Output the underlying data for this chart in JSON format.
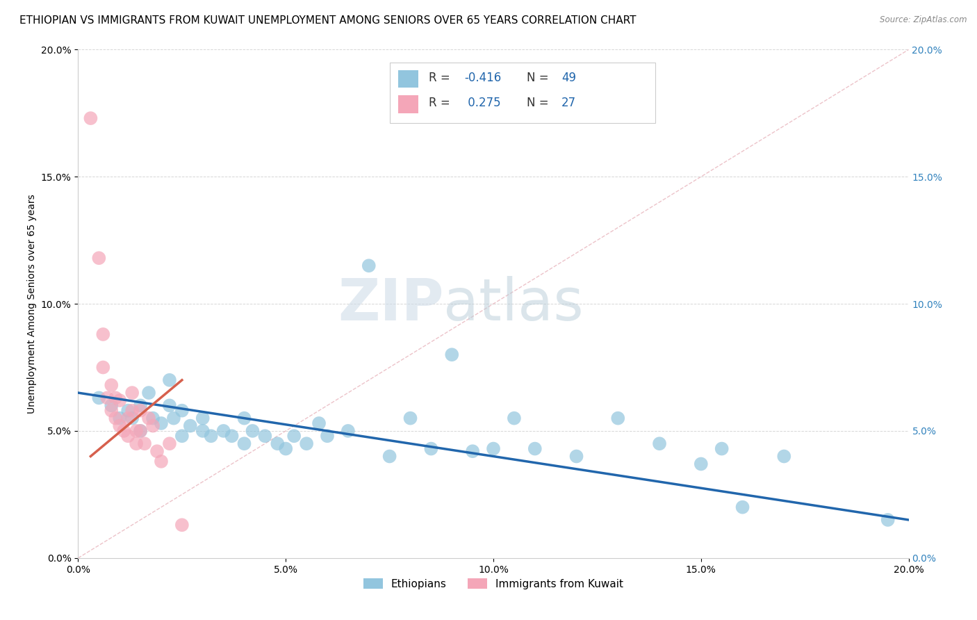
{
  "title": "ETHIOPIAN VS IMMIGRANTS FROM KUWAIT UNEMPLOYMENT AMONG SENIORS OVER 65 YEARS CORRELATION CHART",
  "source_text": "Source: ZipAtlas.com",
  "ylabel": "Unemployment Among Seniors over 65 years",
  "xlabel": "",
  "xlim": [
    0.0,
    0.2
  ],
  "ylim": [
    0.0,
    0.2
  ],
  "xticks": [
    0.0,
    0.05,
    0.1,
    0.15,
    0.2
  ],
  "yticks": [
    0.0,
    0.05,
    0.1,
    0.15,
    0.2
  ],
  "xtick_labels": [
    "0.0%",
    "5.0%",
    "10.0%",
    "15.0%",
    "20.0%"
  ],
  "ytick_labels": [
    "0.0%",
    "5.0%",
    "10.0%",
    "15.0%",
    "20.0%"
  ],
  "right_ytick_labels": [
    "0.0%",
    "5.0%",
    "10.0%",
    "15.0%",
    "20.0%"
  ],
  "watermark_zip": "ZIP",
  "watermark_atlas": "atlas",
  "legend_label1": "Ethiopians",
  "legend_label2": "Immigrants from Kuwait",
  "blue_color": "#92c5de",
  "pink_color": "#f4a6b8",
  "blue_line_color": "#2166ac",
  "pink_line_color": "#d6604d",
  "blue_scatter": [
    [
      0.005,
      0.063
    ],
    [
      0.008,
      0.06
    ],
    [
      0.01,
      0.055
    ],
    [
      0.012,
      0.058
    ],
    [
      0.013,
      0.055
    ],
    [
      0.015,
      0.06
    ],
    [
      0.015,
      0.05
    ],
    [
      0.017,
      0.065
    ],
    [
      0.018,
      0.055
    ],
    [
      0.02,
      0.053
    ],
    [
      0.022,
      0.06
    ],
    [
      0.022,
      0.07
    ],
    [
      0.023,
      0.055
    ],
    [
      0.025,
      0.058
    ],
    [
      0.025,
      0.048
    ],
    [
      0.027,
      0.052
    ],
    [
      0.03,
      0.05
    ],
    [
      0.03,
      0.055
    ],
    [
      0.032,
      0.048
    ],
    [
      0.035,
      0.05
    ],
    [
      0.037,
      0.048
    ],
    [
      0.04,
      0.055
    ],
    [
      0.04,
      0.045
    ],
    [
      0.042,
      0.05
    ],
    [
      0.045,
      0.048
    ],
    [
      0.048,
      0.045
    ],
    [
      0.05,
      0.043
    ],
    [
      0.052,
      0.048
    ],
    [
      0.055,
      0.045
    ],
    [
      0.058,
      0.053
    ],
    [
      0.06,
      0.048
    ],
    [
      0.065,
      0.05
    ],
    [
      0.07,
      0.115
    ],
    [
      0.075,
      0.04
    ],
    [
      0.08,
      0.055
    ],
    [
      0.085,
      0.043
    ],
    [
      0.09,
      0.08
    ],
    [
      0.095,
      0.042
    ],
    [
      0.1,
      0.043
    ],
    [
      0.105,
      0.055
    ],
    [
      0.11,
      0.043
    ],
    [
      0.12,
      0.04
    ],
    [
      0.13,
      0.055
    ],
    [
      0.14,
      0.045
    ],
    [
      0.15,
      0.037
    ],
    [
      0.155,
      0.043
    ],
    [
      0.16,
      0.02
    ],
    [
      0.17,
      0.04
    ],
    [
      0.195,
      0.015
    ]
  ],
  "pink_scatter": [
    [
      0.003,
      0.173
    ],
    [
      0.005,
      0.118
    ],
    [
      0.006,
      0.088
    ],
    [
      0.006,
      0.075
    ],
    [
      0.007,
      0.063
    ],
    [
      0.008,
      0.068
    ],
    [
      0.008,
      0.058
    ],
    [
      0.009,
      0.055
    ],
    [
      0.009,
      0.063
    ],
    [
      0.01,
      0.052
    ],
    [
      0.01,
      0.062
    ],
    [
      0.011,
      0.05
    ],
    [
      0.012,
      0.055
    ],
    [
      0.012,
      0.048
    ],
    [
      0.013,
      0.058
    ],
    [
      0.013,
      0.065
    ],
    [
      0.014,
      0.045
    ],
    [
      0.014,
      0.05
    ],
    [
      0.015,
      0.058
    ],
    [
      0.015,
      0.05
    ],
    [
      0.016,
      0.045
    ],
    [
      0.017,
      0.055
    ],
    [
      0.018,
      0.052
    ],
    [
      0.019,
      0.042
    ],
    [
      0.02,
      0.038
    ],
    [
      0.022,
      0.045
    ],
    [
      0.025,
      0.013
    ]
  ],
  "blue_trend_x": [
    0.0,
    0.2
  ],
  "blue_trend_y": [
    0.065,
    0.015
  ],
  "pink_trend_x": [
    0.003,
    0.025
  ],
  "pink_trend_y": [
    0.04,
    0.07
  ],
  "ref_line_x": [
    0.0,
    0.2
  ],
  "ref_line_y": [
    0.0,
    0.2
  ],
  "background_color": "#ffffff",
  "grid_color": "#cccccc",
  "title_fontsize": 11,
  "axis_label_fontsize": 10,
  "tick_fontsize": 10
}
